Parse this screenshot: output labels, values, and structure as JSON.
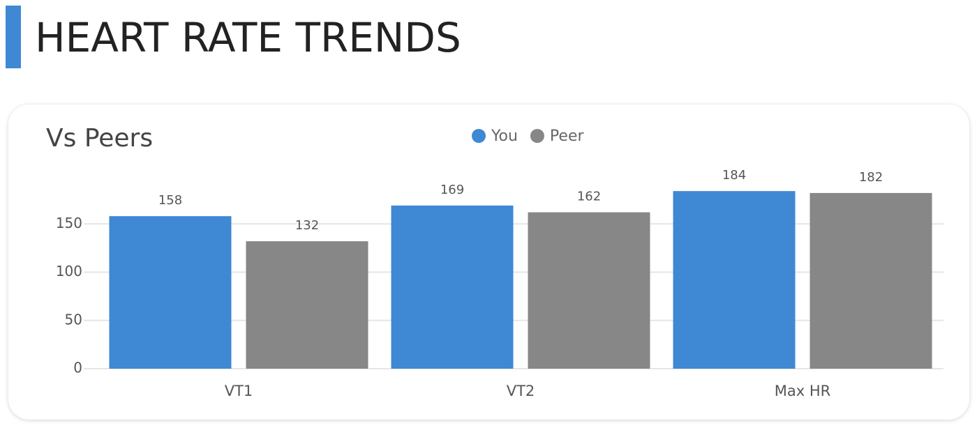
{
  "header": {
    "title": "HEART RATE TRENDS"
  },
  "chart_data": {
    "type": "bar",
    "title": "Vs Peers",
    "categories": [
      "VT1",
      "VT2",
      "Max HR"
    ],
    "series": [
      {
        "name": "You",
        "color": "#3f88d4",
        "values": [
          158,
          169,
          184
        ]
      },
      {
        "name": "Peer",
        "color": "#878787",
        "values": [
          132,
          162,
          182
        ]
      }
    ],
    "ylim": [
      0,
      200
    ],
    "yticks": [
      0,
      50,
      100,
      150
    ],
    "grid": true,
    "legend": "top"
  }
}
